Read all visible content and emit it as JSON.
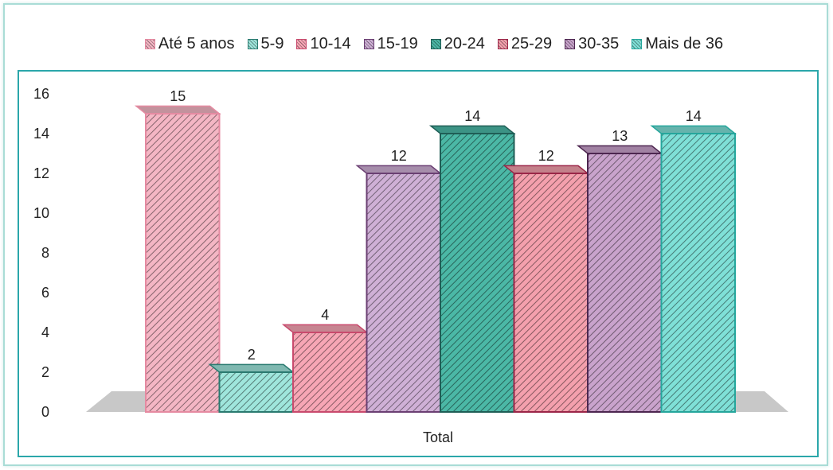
{
  "chart_data": {
    "type": "bar",
    "categories": [
      "Total"
    ],
    "xlabel": "Total",
    "ylim": [
      0,
      16
    ],
    "yticks": [
      0,
      2,
      4,
      6,
      8,
      10,
      12,
      14,
      16
    ],
    "legend_position": "top",
    "grid": false,
    "series": [
      {
        "name": "Até 5 anos",
        "values": [
          15
        ],
        "color": "#f4b6c4",
        "edge": "#e58aa1"
      },
      {
        "name": "5-9",
        "values": [
          2
        ],
        "color": "#9fe6dc",
        "edge": "#2a7a70"
      },
      {
        "name": "10-14",
        "values": [
          4
        ],
        "color": "#f7a6b5",
        "edge": "#c94a6d"
      },
      {
        "name": "15-19",
        "values": [
          12
        ],
        "color": "#cfb0d6",
        "edge": "#6b3f73"
      },
      {
        "name": "20-24",
        "values": [
          14
        ],
        "color": "#4bb8a6",
        "edge": "#1f5e56"
      },
      {
        "name": "25-29",
        "values": [
          12
        ],
        "color": "#f4a0ad",
        "edge": "#9b2648"
      },
      {
        "name": "30-35",
        "values": [
          13
        ],
        "color": "#c9a3cc",
        "edge": "#4d2650"
      },
      {
        "name": "Mais de 36",
        "values": [
          14
        ],
        "color": "#7fe0d7",
        "edge": "#25a69c"
      }
    ]
  }
}
